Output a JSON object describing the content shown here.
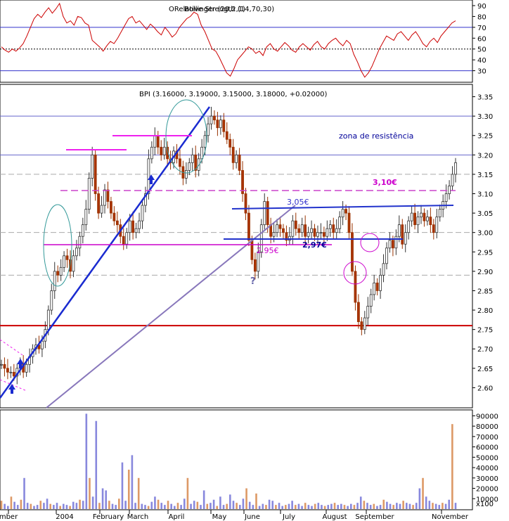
{
  "chart_data": [
    {
      "type": "line",
      "panel": "indicator",
      "title": "ORelative Strength (14,70,30)",
      "title_overlap": "Bollinger (20,2,1)",
      "ylim": [
        20,
        90
      ],
      "yticks": [
        30,
        40,
        50,
        60,
        70,
        80,
        90
      ],
      "hlines": [
        {
          "y": 70,
          "color": "#3333cc",
          "style": "solid"
        },
        {
          "y": 50,
          "color": "#000000",
          "style": "dotted"
        },
        {
          "y": 30,
          "color": "#3333cc",
          "style": "solid"
        }
      ],
      "series": [
        {
          "color": "#cc0000",
          "values": [
            52,
            49,
            47,
            50,
            48,
            51,
            55,
            62,
            70,
            78,
            82,
            79,
            84,
            88,
            83,
            87,
            92,
            80,
            74,
            76,
            72,
            80,
            79,
            74,
            72,
            58,
            55,
            52,
            48,
            53,
            57,
            55,
            60,
            66,
            72,
            78,
            80,
            74,
            76,
            72,
            68,
            73,
            70,
            66,
            63,
            70,
            66,
            61,
            64,
            70,
            74,
            78,
            80,
            84,
            82,
            72,
            66,
            58,
            50,
            48,
            42,
            35,
            28,
            25,
            32,
            40,
            44,
            48,
            52,
            50,
            46,
            48,
            44,
            52,
            55,
            50,
            48,
            52,
            56,
            53,
            49,
            47,
            52,
            55,
            52,
            49,
            54,
            57,
            52,
            50,
            55,
            58,
            60,
            56,
            53,
            58,
            55,
            45,
            38,
            30,
            24,
            28,
            34,
            42,
            50,
            56,
            62,
            60,
            58,
            64,
            66,
            62,
            58,
            63,
            66,
            61,
            55,
            52,
            57,
            60,
            56,
            62,
            66,
            70,
            74,
            76
          ]
        }
      ]
    },
    {
      "type": "candlestick",
      "panel": "price",
      "title": "BPI (3.16000, 3.19000, 3.15000, 3.18000, +0.02000)",
      "ylim": [
        2.55,
        3.38
      ],
      "yticks": [
        2.6,
        2.65,
        2.7,
        2.75,
        2.8,
        2.85,
        2.9,
        2.95,
        3.0,
        3.05,
        3.1,
        3.15,
        3.2,
        3.25,
        3.3,
        3.35
      ],
      "close": [
        2.66,
        2.65,
        2.64,
        2.64,
        2.63,
        2.65,
        2.66,
        2.64,
        2.66,
        2.68,
        2.7,
        2.71,
        2.7,
        2.72,
        2.75,
        2.8,
        2.85,
        2.9,
        2.89,
        2.91,
        2.94,
        2.93,
        2.9,
        2.94,
        2.96,
        2.99,
        3.02,
        3.06,
        3.14,
        3.2,
        3.1,
        3.05,
        3.07,
        3.11,
        3.08,
        3.05,
        3.03,
        3.02,
        2.99,
        2.97,
        3.0,
        3.03,
        3.0,
        3.01,
        3.03,
        3.07,
        3.1,
        3.19,
        3.22,
        3.25,
        3.22,
        3.2,
        3.22,
        3.19,
        3.18,
        3.21,
        3.19,
        3.17,
        3.14,
        3.16,
        3.18,
        3.2,
        3.16,
        3.19,
        3.22,
        3.25,
        3.28,
        3.3,
        3.29,
        3.27,
        3.29,
        3.26,
        3.24,
        3.22,
        3.18,
        3.2,
        3.16,
        3.1,
        3.05,
        2.98,
        2.93,
        2.9,
        2.95,
        3.02,
        3.08,
        3.02,
        2.99,
        3.0,
        3.02,
        3.01,
        3.0,
        2.98,
        2.99,
        3.03,
        3.01,
        3.0,
        3.02,
        2.99,
        3.0,
        3.01,
        2.99,
        3.0,
        3.0,
        2.99,
        3.01,
        3.02,
        3.0,
        3.01,
        3.04,
        3.06,
        3.05,
        3.0,
        2.9,
        2.82,
        2.77,
        2.75,
        2.78,
        2.81,
        2.84,
        2.87,
        2.85,
        2.89,
        2.92,
        2.96,
        2.98,
        2.96,
        2.99,
        3.02,
        2.97,
        3.0,
        3.03,
        3.05,
        3.02,
        3.04,
        3.05,
        3.03,
        3.04,
        3.02,
        3.0,
        3.04,
        3.06,
        3.08,
        3.1,
        3.12,
        3.15,
        3.18
      ],
      "hlines": [
        {
          "y": 3.3,
          "color": "#6666cc"
        },
        {
          "y": 3.2,
          "color": "#6666cc"
        },
        {
          "y": 3.0,
          "color": "#aaaaaa",
          "style": "dashed"
        },
        {
          "y": 2.89,
          "color": "#aaaaaa",
          "style": "dashed"
        },
        {
          "y": 3.15,
          "color": "#aaaaaa",
          "style": "dashed"
        },
        {
          "y": 2.76,
          "color": "#cc0000",
          "style": "solid"
        }
      ],
      "annotations": [
        {
          "text": "zona de resistência",
          "x": 482,
          "y": 197,
          "color": "#000099"
        },
        {
          "text": "3,10€",
          "x": 530,
          "y": 263,
          "color": "#cc00cc"
        },
        {
          "text": "3,05€",
          "x": 408,
          "y": 291,
          "color": "#3333cc"
        },
        {
          "text": "2,97€",
          "x": 430,
          "y": 352,
          "color": "#000099"
        },
        {
          "text": "2.95€",
          "x": 365,
          "y": 360,
          "color": "#cc00cc"
        },
        {
          "text": "?",
          "x": 356,
          "y": 404,
          "color": "#6666aa"
        }
      ]
    },
    {
      "type": "bar",
      "panel": "volume",
      "ylim": [
        0,
        95000
      ],
      "yticks": [
        10000,
        20000,
        30000,
        40000,
        50000,
        60000,
        70000,
        80000,
        90000
      ],
      "unit_label": "x100",
      "values": [
        8000,
        5000,
        3000,
        12000,
        7000,
        4000,
        9000,
        30000,
        6000,
        5000,
        3000,
        4000,
        8000,
        6000,
        10000,
        5000,
        4000,
        6000,
        3000,
        5000,
        4000,
        3000,
        7000,
        6000,
        9000,
        8000,
        92000,
        30000,
        12000,
        85000,
        6000,
        20000,
        18000,
        8000,
        5000,
        4000,
        10000,
        45000,
        8000,
        38000,
        52000,
        6000,
        30000,
        5000,
        4000,
        3000,
        7000,
        12000,
        9000,
        6000,
        4000,
        8000,
        5000,
        3000,
        6000,
        4000,
        10000,
        30000,
        5000,
        8000,
        7000,
        4000,
        18000,
        5000,
        6000,
        9000,
        3000,
        12000,
        4000,
        5000,
        14000,
        8000,
        6000,
        4000,
        10000,
        20000,
        7000,
        4000,
        15000,
        3000,
        5000,
        4000,
        9000,
        8000,
        4000,
        6000,
        3000,
        4000,
        5000,
        8000,
        4000,
        5000,
        3000,
        6000,
        4000,
        3000,
        5000,
        6000,
        4000,
        3000,
        4000,
        5000,
        6000,
        4000,
        5000,
        4000,
        3000,
        5000,
        4000,
        6000,
        12000,
        8000,
        6000,
        4000,
        5000,
        3000,
        4000,
        9000,
        7000,
        5000,
        4000,
        6000,
        5000,
        8000,
        6000,
        5000,
        4000,
        6000,
        20000,
        30000,
        12000,
        8000,
        6000,
        5000,
        4000,
        6000,
        5000,
        9000,
        82000,
        6000
      ]
    }
  ],
  "x_axis": {
    "labels": [
      "mber",
      "2004",
      "February",
      "March",
      "April",
      "May",
      "June",
      "July",
      "August",
      "September",
      "November"
    ]
  }
}
